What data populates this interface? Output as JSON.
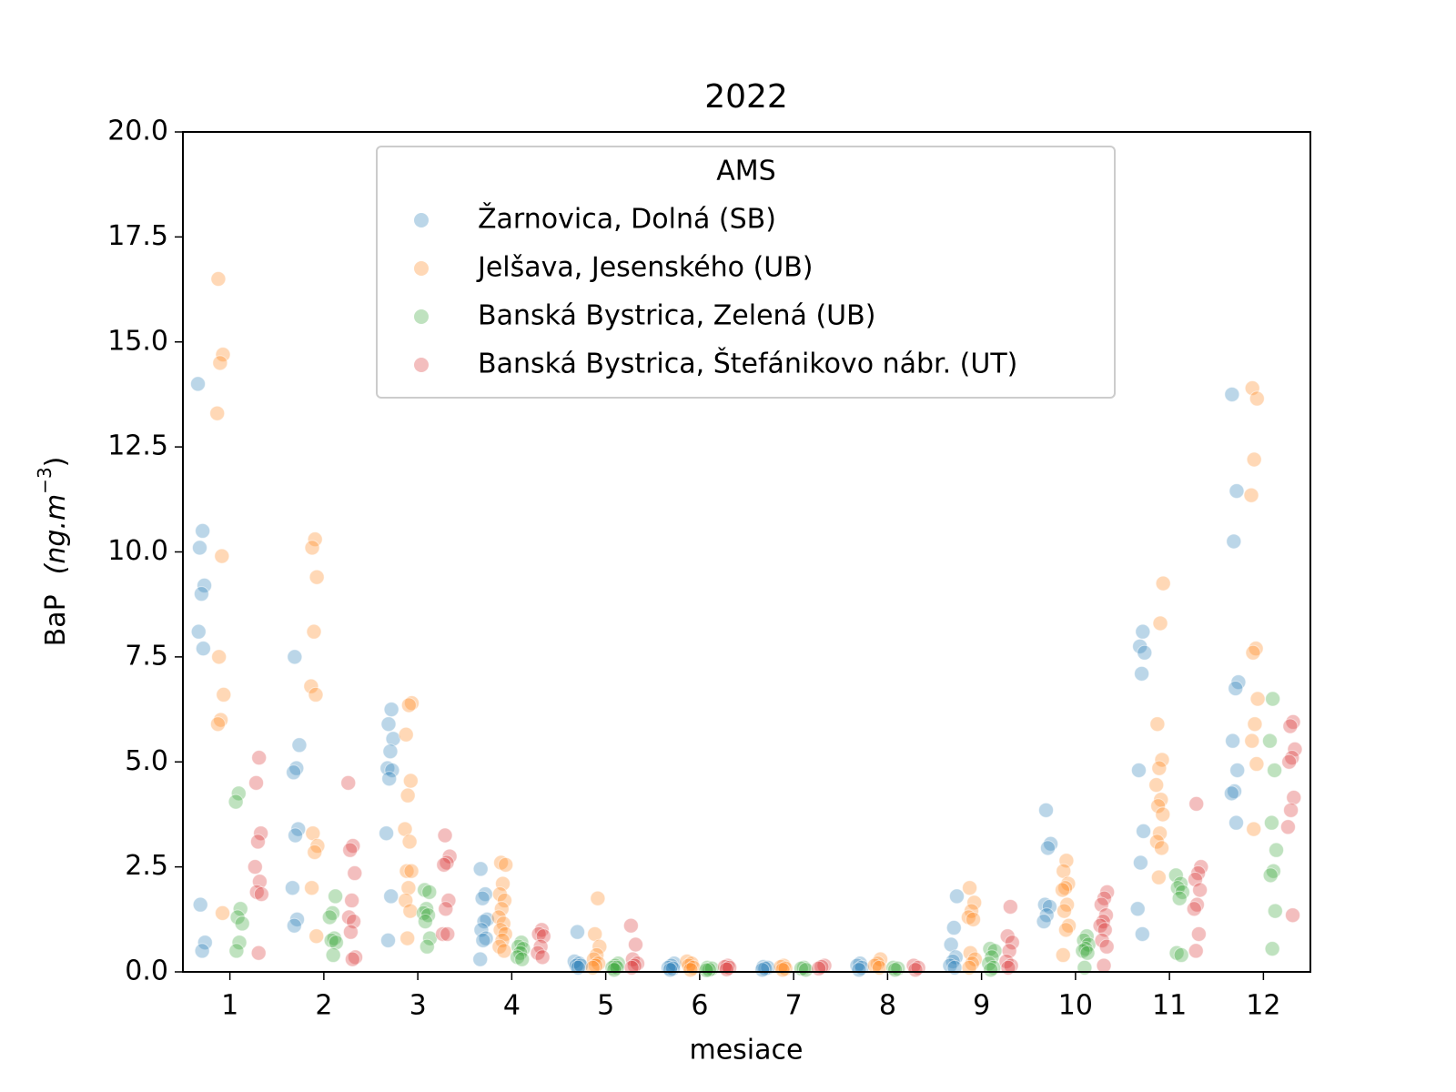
{
  "chart_data": {
    "type": "strip",
    "title": "2022",
    "x_label": "mesiace",
    "y_label": [
      "BaP",
      "(ng.m",
      "−3",
      ")"
    ],
    "legend_title": "AMS",
    "legend_position": "upper center",
    "x": [
      1,
      2,
      3,
      4,
      5,
      6,
      7,
      8,
      9,
      10,
      11,
      12
    ],
    "xlim": [
      0.5,
      12.5
    ],
    "xticks": [
      1,
      2,
      3,
      4,
      5,
      6,
      7,
      8,
      9,
      10,
      11,
      12
    ],
    "ylim": [
      0,
      20
    ],
    "yticks": [
      {
        "value": 0,
        "label": "0.0"
      },
      {
        "value": 2.5,
        "label": "2.5"
      },
      {
        "value": 5,
        "label": "5.0"
      },
      {
        "value": 7.5,
        "label": "7.5"
      },
      {
        "value": 10,
        "label": "10.0"
      },
      {
        "value": 12.5,
        "label": "12.5"
      },
      {
        "value": 15,
        "label": "15.0"
      },
      {
        "value": 17.5,
        "label": "17.5"
      },
      {
        "value": 20,
        "label": "20.0"
      }
    ],
    "grid": false,
    "series": [
      {
        "name": "Žarnovica, Dolná (SB)",
        "color": "#1f77b4",
        "values": [
          [
            14.0,
            10.5,
            10.1,
            9.2,
            9.0,
            8.1,
            7.7,
            1.6,
            0.7,
            0.5
          ],
          [
            7.5,
            5.4,
            4.85,
            4.75,
            3.4,
            3.25,
            2.0,
            1.25,
            1.1
          ],
          [
            6.25,
            5.9,
            5.55,
            5.25,
            4.85,
            4.8,
            4.6,
            3.3,
            1.8,
            0.75
          ],
          [
            2.45,
            1.85,
            1.75,
            1.25,
            1.2,
            1.0,
            0.8,
            0.75,
            0.3
          ],
          [
            0.95,
            0.25,
            0.2,
            0.15,
            0.15,
            0.1
          ],
          [
            0.2,
            0.15,
            0.1,
            0.08,
            0.05
          ],
          [
            0.12,
            0.1,
            0.08,
            0.05
          ],
          [
            0.2,
            0.15,
            0.1,
            0.05
          ],
          [
            1.8,
            1.05,
            0.65,
            0.35,
            0.25,
            0.15,
            0.1
          ],
          [
            3.85,
            3.05,
            2.95,
            1.6,
            1.55,
            1.35,
            1.2
          ],
          [
            8.1,
            7.75,
            7.6,
            7.1,
            4.8,
            3.35,
            2.6,
            1.5,
            0.9
          ],
          [
            13.75,
            11.45,
            10.25,
            6.9,
            6.75,
            5.5,
            4.8,
            4.3,
            4.25,
            3.55
          ]
        ]
      },
      {
        "name": "Jelšava, Jesenského (UB)",
        "color": "#ff7f0e",
        "values": [
          [
            16.5,
            14.7,
            14.5,
            13.3,
            9.9,
            7.5,
            6.6,
            6.0,
            5.9,
            1.4
          ],
          [
            10.3,
            10.1,
            9.4,
            8.1,
            6.8,
            6.6,
            3.3,
            3.0,
            2.85,
            2.0,
            0.85
          ],
          [
            6.4,
            6.35,
            5.65,
            4.55,
            4.2,
            3.4,
            3.1,
            2.4,
            2.4,
            2.0,
            1.7,
            1.45,
            0.8
          ],
          [
            2.6,
            2.55,
            2.1,
            1.85,
            1.7,
            1.5,
            1.3,
            1.15,
            1.0,
            0.9,
            0.75,
            0.6,
            0.5
          ],
          [
            1.75,
            0.9,
            0.6,
            0.4,
            0.3,
            0.2,
            0.15,
            0.1
          ],
          [
            0.25,
            0.2,
            0.15,
            0.1,
            0.05
          ],
          [
            0.15,
            0.12,
            0.08,
            0.05
          ],
          [
            0.3,
            0.2,
            0.15,
            0.1
          ],
          [
            2.0,
            1.65,
            1.45,
            1.3,
            1.25,
            0.45,
            0.3,
            0.2,
            0.1
          ],
          [
            2.65,
            2.4,
            2.1,
            2.0,
            1.95,
            1.6,
            1.45,
            1.1,
            1.0,
            0.4
          ],
          [
            9.25,
            8.3,
            5.9,
            5.05,
            4.85,
            4.45,
            4.1,
            3.95,
            3.75,
            3.3,
            3.1,
            2.95,
            2.25
          ],
          [
            13.9,
            13.65,
            12.2,
            11.35,
            7.7,
            7.6,
            6.5,
            5.9,
            5.5,
            4.95,
            3.4
          ]
        ]
      },
      {
        "name": "Banská Bystrica, Zelená (UB)",
        "color": "#2ca02c",
        "values": [
          [
            4.25,
            4.05,
            1.5,
            1.3,
            1.15,
            0.7,
            0.5
          ],
          [
            1.8,
            1.4,
            1.3,
            0.8,
            0.75,
            0.7,
            0.4
          ],
          [
            1.95,
            1.9,
            1.5,
            1.4,
            1.35,
            1.2,
            0.8,
            0.6
          ],
          [
            0.7,
            0.6,
            0.55,
            0.45,
            0.35,
            0.3
          ],
          [
            0.2,
            0.15,
            0.1,
            0.1,
            0.05
          ],
          [
            0.1,
            0.08,
            0.05,
            0.04
          ],
          [
            0.1,
            0.08,
            0.05
          ],
          [
            0.1,
            0.08,
            0.05
          ],
          [
            0.55,
            0.5,
            0.35,
            0.2,
            0.1,
            0.05
          ],
          [
            0.85,
            0.75,
            0.65,
            0.55,
            0.5,
            0.45,
            0.1
          ],
          [
            2.3,
            2.1,
            2.0,
            1.9,
            1.75,
            0.45,
            0.4
          ],
          [
            6.5,
            5.5,
            4.8,
            3.55,
            2.9,
            2.4,
            2.3,
            1.45,
            0.55
          ]
        ]
      },
      {
        "name": "Banská Bystrica, Štefánikovo nábr. (UT)",
        "color": "#d62728",
        "values": [
          [
            5.1,
            4.5,
            3.3,
            3.1,
            2.5,
            2.15,
            1.9,
            1.85,
            0.45
          ],
          [
            4.5,
            3.0,
            2.9,
            2.35,
            1.7,
            1.3,
            1.2,
            0.95,
            0.35,
            0.3
          ],
          [
            3.25,
            2.75,
            2.6,
            2.55,
            1.7,
            1.5,
            0.9,
            0.9
          ],
          [
            1.0,
            0.9,
            0.85,
            0.6,
            0.45,
            0.35
          ],
          [
            1.1,
            0.65,
            0.3,
            0.2,
            0.15,
            0.1
          ],
          [
            0.15,
            0.12,
            0.1,
            0.06
          ],
          [
            0.15,
            0.12,
            0.08
          ],
          [
            0.15,
            0.1,
            0.05
          ],
          [
            1.55,
            0.85,
            0.7,
            0.5,
            0.25,
            0.15,
            0.1
          ],
          [
            1.9,
            1.75,
            1.6,
            1.35,
            1.2,
            1.1,
            1.0,
            0.75,
            0.6,
            0.15
          ],
          [
            4.0,
            2.5,
            2.35,
            2.2,
            1.95,
            1.6,
            1.5,
            0.9,
            0.5
          ],
          [
            5.95,
            5.85,
            5.3,
            5.1,
            5.0,
            4.15,
            3.85,
            3.45,
            1.35
          ]
        ]
      }
    ]
  }
}
